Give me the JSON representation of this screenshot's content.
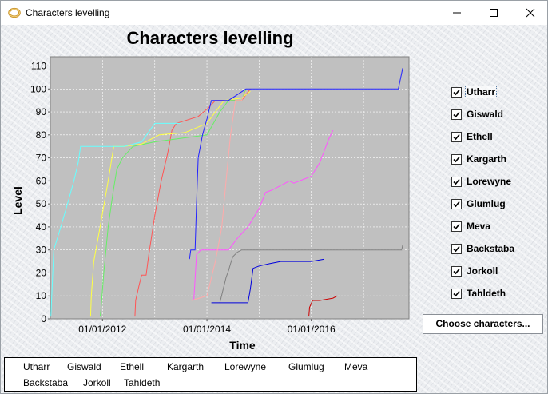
{
  "window": {
    "title": "Characters levelling",
    "icon": "ring-icon",
    "controls": [
      "minimize-icon",
      "maximize-icon",
      "close-icon"
    ]
  },
  "chart_data": {
    "type": "line",
    "title": "Characters levelling",
    "xlabel": "Time",
    "ylabel": "Level",
    "x_ticks": [
      "01/01/2012",
      "01/01/2014",
      "01/01/2016"
    ],
    "y_ticks": [
      "0",
      "10",
      "20",
      "30",
      "40",
      "50",
      "60",
      "70",
      "80",
      "90",
      "100",
      "110"
    ],
    "xlim": [
      "2011-01-01",
      "2017-11-15"
    ],
    "ylim": [
      0,
      114
    ],
    "grid": true,
    "legend_position": "bottom",
    "series": [
      {
        "name": "Utharr",
        "color": "#ff5555",
        "points": [
          [
            "2012-08-15",
            1
          ],
          [
            "2012-08-20",
            8
          ],
          [
            "2012-09-15",
            15
          ],
          [
            "2012-10-01",
            19
          ],
          [
            "2012-11-01",
            19
          ],
          [
            "2012-11-20",
            28
          ],
          [
            "2013-01-01",
            45
          ],
          [
            "2013-02-15",
            60
          ],
          [
            "2013-04-01",
            72
          ],
          [
            "2013-05-01",
            82
          ],
          [
            "2013-06-01",
            85
          ],
          [
            "2013-11-01",
            88
          ],
          [
            "2014-01-15",
            92
          ],
          [
            "2014-03-01",
            95
          ],
          [
            "2014-09-01",
            95
          ],
          [
            "2014-11-01",
            100
          ]
        ]
      },
      {
        "name": "Giswald",
        "color": "#808080",
        "points": [
          [
            "2014-04-01",
            7
          ],
          [
            "2014-05-15",
            18
          ],
          [
            "2014-06-01",
            21
          ],
          [
            "2014-06-15",
            24
          ],
          [
            "2014-07-01",
            27
          ],
          [
            "2014-08-01",
            29
          ],
          [
            "2014-09-01",
            30
          ],
          [
            "2016-01-01",
            30
          ],
          [
            "2017-01-01",
            30
          ],
          [
            "2017-09-25",
            30
          ],
          [
            "2017-10-01",
            32
          ]
        ]
      },
      {
        "name": "Ethell",
        "color": "#66ee66",
        "points": [
          [
            "2011-12-15",
            1
          ],
          [
            "2011-12-20",
            3
          ],
          [
            "2012-01-10",
            20
          ],
          [
            "2012-02-10",
            40
          ],
          [
            "2012-03-15",
            55
          ],
          [
            "2012-04-10",
            65
          ],
          [
            "2012-05-20",
            70
          ],
          [
            "2012-08-01",
            75
          ],
          [
            "2013-01-01",
            77
          ],
          [
            "2013-05-01",
            78
          ],
          [
            "2014-01-01",
            80
          ],
          [
            "2014-04-01",
            90
          ],
          [
            "2014-06-01",
            95
          ],
          [
            "2014-09-01",
            95
          ],
          [
            "2014-10-01",
            100
          ]
        ]
      },
      {
        "name": "Kargarth",
        "color": "#ffff44",
        "points": [
          [
            "2011-10-10",
            1
          ],
          [
            "2011-10-15",
            10
          ],
          [
            "2011-11-01",
            25
          ],
          [
            "2011-12-15",
            40
          ],
          [
            "2012-02-10",
            60
          ],
          [
            "2012-03-20",
            75
          ],
          [
            "2012-06-01",
            75
          ],
          [
            "2012-10-01",
            76
          ],
          [
            "2013-02-01",
            80
          ],
          [
            "2013-08-01",
            81
          ],
          [
            "2014-01-01",
            85
          ],
          [
            "2014-03-01",
            90
          ],
          [
            "2014-05-01",
            95
          ],
          [
            "2014-09-01",
            96
          ],
          [
            "2014-11-01",
            99
          ]
        ]
      },
      {
        "name": "Lorewyne",
        "color": "#ff55ff",
        "points": [
          [
            "2013-10-01",
            8
          ],
          [
            "2013-10-20",
            28
          ],
          [
            "2013-11-20",
            30
          ],
          [
            "2014-06-01",
            30
          ],
          [
            "2014-08-01",
            35
          ],
          [
            "2014-10-15",
            40
          ],
          [
            "2015-01-01",
            48
          ],
          [
            "2015-02-15",
            55
          ],
          [
            "2015-04-01",
            56
          ],
          [
            "2015-08-01",
            60
          ],
          [
            "2015-09-01",
            59
          ],
          [
            "2016-01-01",
            62
          ],
          [
            "2016-03-01",
            68
          ],
          [
            "2016-05-01",
            78
          ],
          [
            "2016-06-01",
            82
          ]
        ]
      },
      {
        "name": "Glumlug",
        "color": "#66ffff",
        "points": [
          [
            "2011-01-05",
            1
          ],
          [
            "2011-01-25",
            30
          ],
          [
            "2011-03-15",
            40
          ],
          [
            "2011-05-01",
            50
          ],
          [
            "2011-06-15",
            60
          ],
          [
            "2011-07-15",
            68
          ],
          [
            "2011-08-01",
            75
          ],
          [
            "2012-06-01",
            75
          ],
          [
            "2012-10-01",
            77
          ],
          [
            "2013-01-01",
            85
          ],
          [
            "2013-07-01",
            85
          ]
        ]
      },
      {
        "name": "Meva",
        "color": "#ffaaaa",
        "points": [
          [
            "2013-09-15",
            8
          ],
          [
            "2014-01-01",
            10
          ],
          [
            "2014-03-01",
            25
          ],
          [
            "2014-04-15",
            40
          ],
          [
            "2014-05-15",
            60
          ],
          [
            "2014-06-15",
            80
          ],
          [
            "2014-07-20",
            95
          ],
          [
            "2014-09-01",
            95
          ],
          [
            "2014-10-01",
            99
          ]
        ]
      },
      {
        "name": "Backstaba",
        "color": "#0000dd",
        "points": [
          [
            "2014-02-01",
            7
          ],
          [
            "2014-10-15",
            7
          ],
          [
            "2014-11-01",
            13
          ],
          [
            "2014-11-20",
            22
          ],
          [
            "2015-01-01",
            23
          ],
          [
            "2015-03-15",
            24
          ],
          [
            "2015-06-01",
            25
          ],
          [
            "2015-09-01",
            25
          ],
          [
            "2016-01-01",
            25
          ],
          [
            "2016-04-01",
            26
          ]
        ]
      },
      {
        "name": "Jorkoll",
        "color": "#cc0000",
        "points": [
          [
            "2015-12-15",
            1
          ],
          [
            "2015-12-20",
            5
          ],
          [
            "2016-01-10",
            8
          ],
          [
            "2016-03-01",
            8
          ],
          [
            "2016-06-01",
            9
          ],
          [
            "2016-07-01",
            10
          ]
        ]
      },
      {
        "name": "Tahldeth",
        "color": "#2222ff",
        "points": [
          [
            "2013-09-01",
            26
          ],
          [
            "2013-09-10",
            30
          ],
          [
            "2013-10-10",
            30
          ],
          [
            "2013-10-20",
            50
          ],
          [
            "2013-11-01",
            70
          ],
          [
            "2013-12-01",
            80
          ],
          [
            "2014-01-01",
            87
          ],
          [
            "2014-02-01",
            95
          ],
          [
            "2014-06-01",
            95
          ],
          [
            "2014-10-01",
            100
          ],
          [
            "2016-01-01",
            100
          ],
          [
            "2017-06-01",
            100
          ],
          [
            "2017-09-01",
            100
          ],
          [
            "2017-09-25",
            107
          ],
          [
            "2017-10-01",
            109
          ]
        ]
      }
    ]
  },
  "checklist": {
    "items": [
      {
        "label": "Utharr",
        "checked": true,
        "focused": true
      },
      {
        "label": "Giswald",
        "checked": true
      },
      {
        "label": "Ethell",
        "checked": true
      },
      {
        "label": "Kargarth",
        "checked": true
      },
      {
        "label": "Lorewyne",
        "checked": true
      },
      {
        "label": "Glumlug",
        "checked": true
      },
      {
        "label": "Meva",
        "checked": true
      },
      {
        "label": "Backstaba",
        "checked": true
      },
      {
        "label": "Jorkoll",
        "checked": true
      },
      {
        "label": "Tahldeth",
        "checked": true
      }
    ]
  },
  "buttons": {
    "choose_label": "Choose characters..."
  }
}
